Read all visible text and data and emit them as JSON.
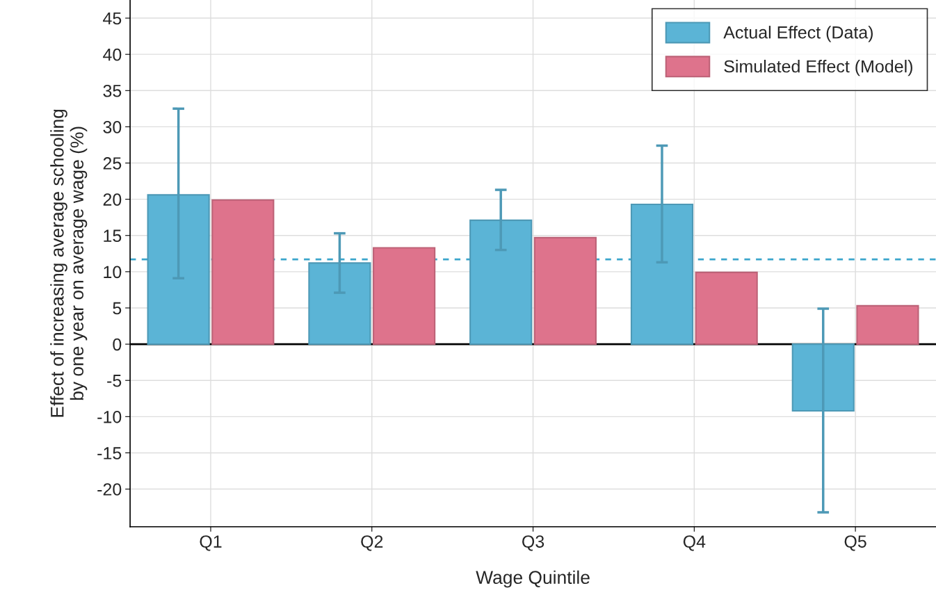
{
  "chart_data": {
    "type": "bar",
    "xlabel": "Wage Quintile",
    "ylabel": "Effect of increasing average schooling\nby one year on average wage (%)",
    "categories": [
      "Q1",
      "Q2",
      "Q3",
      "Q4",
      "Q5"
    ],
    "series": [
      {
        "name": "Actual Effect (Data)",
        "color": "#5bb4d6",
        "values": [
          20.6,
          11.2,
          17.1,
          19.3,
          -9.2
        ],
        "errors": [
          [
            9.1,
            32.5
          ],
          [
            7.1,
            15.3
          ],
          [
            13.0,
            21.3
          ],
          [
            11.3,
            27.4
          ],
          [
            -23.2,
            4.9
          ]
        ]
      },
      {
        "name": "Simulated Effect (Model)",
        "color": "#de738c",
        "values": [
          19.9,
          13.3,
          14.7,
          9.9,
          5.3
        ]
      }
    ],
    "ref_lines": [
      {
        "axis": "y",
        "value": 0,
        "color": "#000000",
        "line_style": "solid"
      },
      {
        "axis": "y",
        "value": 11.7,
        "color": "#3aa5cc",
        "line_style": "dashed"
      }
    ],
    "ylim": [
      -25.2,
      47.5
    ],
    "yticks": [
      -20,
      -15,
      -10,
      -5,
      0,
      5,
      10,
      15,
      20,
      25,
      30,
      35,
      40,
      45
    ],
    "grid": true,
    "legend": "top right"
  }
}
